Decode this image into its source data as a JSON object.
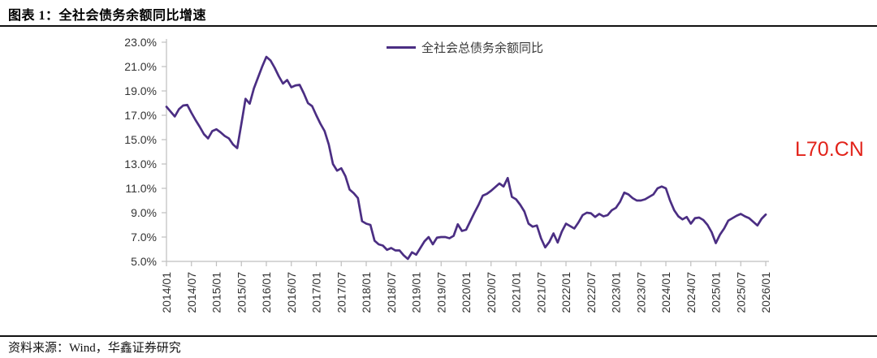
{
  "figure": {
    "title": "图表 1：全社会债务余额同比增速",
    "source": "资料来源：Wind，华鑫证券研究",
    "watermark": "L70.CN"
  },
  "colors": {
    "line": "#4B2E83",
    "axis": "#BFBFBF",
    "tick_label": "#333333",
    "watermark": "#E2231A",
    "rule": "#111111"
  },
  "chart_data": {
    "type": "line",
    "title": "全社会债务余额同比增速",
    "xlabel": "",
    "ylabel": "",
    "grid": false,
    "legend_position": "top-center",
    "ylim": [
      5.0,
      23.0
    ],
    "y_tick_values": [
      5,
      7,
      9,
      11,
      13,
      15,
      17,
      19,
      21,
      23
    ],
    "y_tick_labels": [
      "5.0%",
      "7.0%",
      "9.0%",
      "11.0%",
      "13.0%",
      "15.0%",
      "17.0%",
      "19.0%",
      "21.0%",
      "23.0%"
    ],
    "x_tick_interval_months": 6,
    "x_tick_labels": [
      "2014/01",
      "2014/07",
      "2015/01",
      "2015/07",
      "2016/01",
      "2016/07",
      "2017/01",
      "2017/07",
      "2018/01",
      "2018/07",
      "2019/01",
      "2019/07",
      "2020/01",
      "2020/07",
      "2021/01",
      "2021/07",
      "2022/01",
      "2022/07",
      "2023/01",
      "2023/07",
      "2024/01",
      "2024/07",
      "2025/01",
      "2025/07",
      "2026/01"
    ],
    "series": [
      {
        "name": "全社会总债务余额同比",
        "color": "#4B2E83",
        "x_monthly_from": "2014/01",
        "x_monthly_to": "2026/01",
        "values": [
          17.7,
          17.3,
          16.9,
          17.5,
          17.8,
          17.85,
          17.2,
          16.6,
          16.05,
          15.45,
          15.1,
          15.7,
          15.85,
          15.6,
          15.3,
          15.1,
          14.6,
          14.3,
          16.3,
          18.35,
          17.95,
          19.2,
          20.1,
          21.0,
          21.8,
          21.5,
          20.9,
          20.2,
          19.6,
          19.9,
          19.3,
          19.45,
          19.5,
          18.8,
          18.0,
          17.75,
          17.0,
          16.3,
          15.7,
          14.6,
          13.0,
          12.45,
          12.65,
          12.0,
          10.9,
          10.6,
          10.2,
          8.3,
          8.1,
          8.0,
          6.7,
          6.4,
          6.3,
          5.95,
          6.1,
          5.9,
          5.9,
          5.5,
          5.2,
          5.75,
          5.55,
          6.1,
          6.65,
          7.0,
          6.4,
          6.95,
          7.0,
          7.0,
          6.9,
          7.1,
          8.05,
          7.5,
          7.6,
          8.3,
          9.0,
          9.65,
          10.4,
          10.55,
          10.8,
          11.1,
          11.4,
          11.15,
          11.85,
          10.3,
          10.1,
          9.65,
          9.1,
          8.1,
          7.85,
          7.95,
          6.9,
          6.15,
          6.6,
          7.3,
          6.55,
          7.45,
          8.1,
          7.9,
          7.7,
          8.2,
          8.8,
          9.0,
          8.95,
          8.65,
          8.9,
          8.7,
          8.8,
          9.2,
          9.4,
          9.9,
          10.65,
          10.5,
          10.2,
          10.0,
          10.0,
          10.1,
          10.3,
          10.5,
          11.0,
          11.15,
          11.0,
          10.0,
          9.2,
          8.7,
          8.45,
          8.65,
          8.1,
          8.55,
          8.6,
          8.4,
          8.0,
          7.4,
          6.5,
          7.2,
          7.7,
          8.35,
          8.55,
          8.75,
          8.9,
          8.7,
          8.55,
          8.25,
          7.95,
          8.5,
          8.85
        ]
      }
    ]
  }
}
